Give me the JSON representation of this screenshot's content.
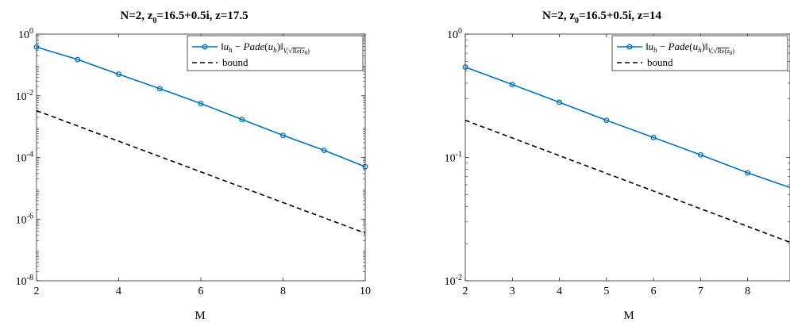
{
  "chart_data": [
    {
      "type": "line",
      "title": {
        "prefix": "N=2, z",
        "sub": "0",
        "suffix": "=16.5+0.5i, z=17.5"
      },
      "xlabel": "M",
      "ylabel": "",
      "yscale": "log",
      "xlim": [
        2,
        10
      ],
      "ylim_exp": [
        -8,
        0
      ],
      "xticks": [
        "2",
        "4",
        "6",
        "8",
        "10"
      ],
      "yticks": [
        {
          "base": "10",
          "exp": "0",
          "value": 1
        },
        {
          "base": "10",
          "exp": "-2",
          "value": 0.01
        },
        {
          "base": "10",
          "exp": "-4",
          "value": 0.0001
        },
        {
          "base": "10",
          "exp": "-6",
          "value": 1e-06
        },
        {
          "base": "10",
          "exp": "-8",
          "value": 1e-08
        }
      ],
      "grid": false,
      "legend_position": "top-right",
      "series": [
        {
          "name": "‖u_h − Pade(u_h)‖_{V,√Re(z0)}",
          "color": "#0072BD",
          "style": "solid-circle-markers",
          "x": [
            2,
            3,
            4,
            5,
            6,
            7,
            8,
            9,
            10
          ],
          "values": [
            0.38,
            0.15,
            0.05,
            0.017,
            0.0056,
            0.0017,
            0.00052,
            0.00017,
            5e-05
          ]
        },
        {
          "name": "bound",
          "color": "#000000",
          "style": "dashed",
          "x": [
            2,
            10
          ],
          "values": [
            0.0033,
            3.5e-07
          ]
        }
      ]
    },
    {
      "type": "line",
      "title": {
        "prefix": "N=2, z",
        "sub": "0",
        "suffix": "=16.5+0.5i, z=14"
      },
      "xlabel": "M",
      "ylabel": "",
      "yscale": "log",
      "xlim": [
        2,
        8.9
      ],
      "ylim_exp": [
        -2,
        0
      ],
      "xticks": [
        "2",
        "3",
        "4",
        "5",
        "6",
        "7",
        "8"
      ],
      "yticks": [
        {
          "base": "10",
          "exp": "0",
          "value": 1
        },
        {
          "base": "10",
          "exp": "-1",
          "value": 0.1
        },
        {
          "base": "10",
          "exp": "-2",
          "value": 0.01
        }
      ],
      "grid": false,
      "legend_position": "top-right",
      "series": [
        {
          "name": "‖u_h − Pade(u_h)‖_{V,√Re(z0)}",
          "color": "#0072BD",
          "style": "solid-circle-markers",
          "x": [
            2,
            3,
            4,
            5,
            6,
            7,
            8,
            8.9
          ],
          "values": [
            0.54,
            0.39,
            0.28,
            0.2,
            0.145,
            0.105,
            0.075,
            0.057
          ],
          "marker_count": 7
        },
        {
          "name": "bound",
          "color": "#000000",
          "style": "dashed",
          "x": [
            2,
            8.9
          ],
          "values": [
            0.2,
            0.0205
          ]
        }
      ]
    }
  ],
  "legend": {
    "bound_label": "bound",
    "norm_label": {
      "left_bar": "‖",
      "u": "u",
      "h": "h",
      "minus": " − ",
      "pade": "Pade",
      "open": "(",
      "close": ")",
      "right_bar": "‖",
      "sub_v": "V,",
      "sqrt": "√",
      "re": "Re(z",
      "re_sub": "0",
      "re_close": ")"
    }
  }
}
